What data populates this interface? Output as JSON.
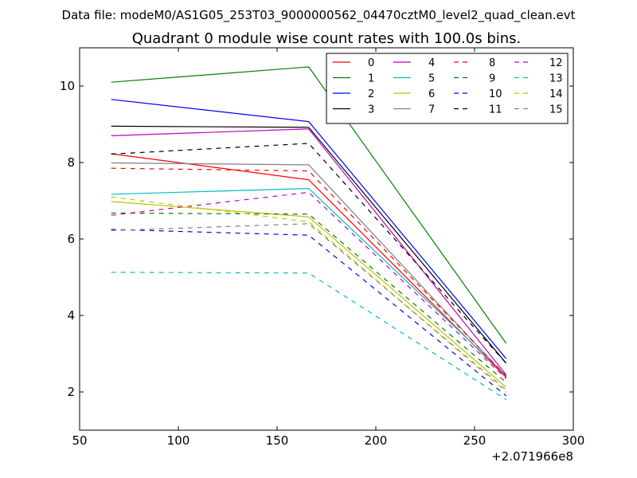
{
  "figure": {
    "suptitle": "Data file: modeM0/AS1G05_253T03_9000000562_04470cztM0_level2_quad_clean.evt"
  },
  "chart_data": {
    "type": "line",
    "title": "Quadrant 0 module wise count rates with 100.0s bins.",
    "xlabel": "",
    "ylabel": "",
    "x_offset_label": "+2.071966e8",
    "xlim": [
      50,
      300
    ],
    "ylim": [
      1,
      11
    ],
    "x_ticks": [
      50,
      100,
      150,
      200,
      250,
      300
    ],
    "x_tick_labels": [
      "50",
      "100",
      "150",
      "200",
      "250",
      "300"
    ],
    "y_ticks": [
      2,
      4,
      6,
      8,
      10
    ],
    "y_tick_labels": [
      "2",
      "4",
      "6",
      "8",
      "10"
    ],
    "grid": false,
    "legend_position": "top-right",
    "legend_columns": 4,
    "x": [
      66,
      166,
      266
    ],
    "series": [
      {
        "name": "0",
        "values": [
          8.23,
          7.55,
          2.38
        ],
        "color": "#ff0000",
        "dash": "solid"
      },
      {
        "name": "1",
        "values": [
          10.1,
          10.5,
          3.27
        ],
        "color": "#008000",
        "dash": "solid"
      },
      {
        "name": "2",
        "values": [
          9.65,
          9.07,
          2.87
        ],
        "color": "#0000ff",
        "dash": "solid"
      },
      {
        "name": "3",
        "values": [
          8.95,
          8.92,
          2.75
        ],
        "color": "#000000",
        "dash": "solid"
      },
      {
        "name": "4",
        "values": [
          8.7,
          8.88,
          2.45
        ],
        "color": "#bf00bf",
        "dash": "solid"
      },
      {
        "name": "5",
        "values": [
          7.17,
          7.32,
          2.43
        ],
        "color": "#00bfbf",
        "dash": "solid"
      },
      {
        "name": "6",
        "values": [
          6.98,
          6.58,
          2.12
        ],
        "color": "#bfbf00",
        "dash": "solid"
      },
      {
        "name": "7",
        "values": [
          7.99,
          7.94,
          2.4
        ],
        "color": "#808080",
        "dash": "solid"
      },
      {
        "name": "8",
        "values": [
          7.85,
          7.78,
          2.42
        ],
        "color": "#ff0000",
        "dash": "dashed"
      },
      {
        "name": "9",
        "values": [
          6.68,
          6.65,
          2.25
        ],
        "color": "#008000",
        "dash": "dashed"
      },
      {
        "name": "10",
        "values": [
          6.25,
          6.1,
          1.9
        ],
        "color": "#0000ff",
        "dash": "dashed"
      },
      {
        "name": "11",
        "values": [
          8.22,
          8.5,
          2.75
        ],
        "color": "#000000",
        "dash": "dashed"
      },
      {
        "name": "12",
        "values": [
          6.62,
          7.22,
          2.35
        ],
        "color": "#bf00bf",
        "dash": "dashed"
      },
      {
        "name": "13",
        "values": [
          5.13,
          5.11,
          1.8
        ],
        "color": "#00bfbf",
        "dash": "dashed"
      },
      {
        "name": "14",
        "values": [
          7.1,
          6.45,
          2.0
        ],
        "color": "#bfbf00",
        "dash": "dashed"
      },
      {
        "name": "15",
        "values": [
          6.22,
          6.4,
          2.05
        ],
        "color": "#808080",
        "dash": "dashed"
      }
    ]
  }
}
